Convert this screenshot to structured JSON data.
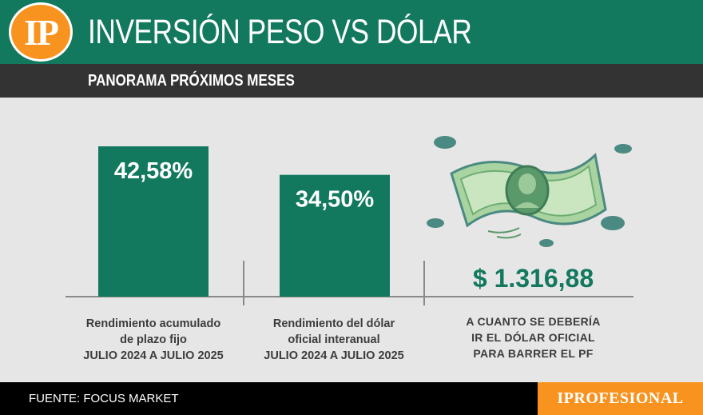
{
  "header": {
    "logo_text": "IP",
    "title": "INVERSIÓN PESO VS DÓLAR"
  },
  "subheader": {
    "title": "PANORAMA PRÓXIMOS MESES"
  },
  "chart_data": {
    "type": "bar",
    "categories": [
      [
        "Rendimiento acumulado",
        "de plazo fijo",
        "JULIO 2024 A JULIO 2025"
      ],
      [
        "Rendimiento del dólar",
        "oficial interanual",
        "JULIO 2024 A JULIO 2025"
      ]
    ],
    "values": [
      42.58,
      34.5
    ],
    "value_labels": [
      "42,58%",
      "34,50%"
    ],
    "ylim": [
      0,
      42.58
    ],
    "color": "#12795f",
    "grid": false
  },
  "highlight": {
    "value": "$ 1.316,88",
    "caption": [
      "A CUANTO SE DEBERÍA",
      "IR EL DÓLAR OFICIAL",
      "PARA BARRER EL PF"
    ],
    "icon": "dollar-bill-icon"
  },
  "footer": {
    "source": "FUENTE: FOCUS MARKET",
    "brand": "IPROFESIONAL"
  },
  "colors": {
    "primary": "#12795f",
    "accent": "#f7931e",
    "dark": "#333333",
    "background": "#e6e6e6"
  }
}
